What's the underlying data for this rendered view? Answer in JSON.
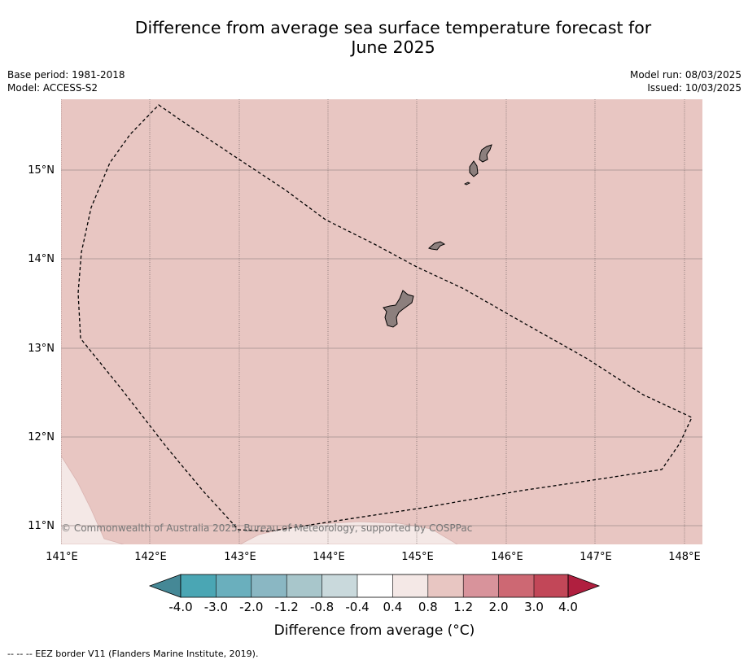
{
  "title_line1": "Difference from average sea surface temperature forecast for",
  "title_line2": "June 2025",
  "base_period": "Base period: 1981-2018",
  "model": "Model: ACCESS-S2",
  "model_run": "Model run: 08/03/2025",
  "issued": "Issued: 10/03/2025",
  "map": {
    "lon_ticks": [
      "141°E",
      "142°E",
      "143°E",
      "144°E",
      "145°E",
      "146°E",
      "147°E",
      "148°E"
    ],
    "lat_ticks": [
      "15°N",
      "14°N",
      "13°N",
      "12°N",
      "11°N"
    ],
    "credit": "© Commonwealth of Australia 2025, Bureau of Meteorology, supported by COSPPac",
    "ocean_color": "#e8c6c2",
    "warm_light_color": "#f4e8e6",
    "land_color": "#8c7f7d"
  },
  "colorbar": {
    "labels": [
      "-4.0",
      "-3.0",
      "-2.0",
      "-1.2",
      "-0.8",
      "-0.4",
      "0.4",
      "0.8",
      "1.2",
      "2.0",
      "3.0",
      "4.0"
    ],
    "colors": [
      "#458896",
      "#4aa6b4",
      "#6aafbd",
      "#8ab7c3",
      "#a8c6cb",
      "#c9d9dc",
      "#ffffff",
      "#f4e8e6",
      "#e8c6c2",
      "#d8939b",
      "#cd6873",
      "#c24758",
      "#b01f3f"
    ],
    "label": "Difference from average (°C)"
  },
  "footer": "--  --  -- EEZ border V11 (Flanders Marine Institute, 2019)."
}
